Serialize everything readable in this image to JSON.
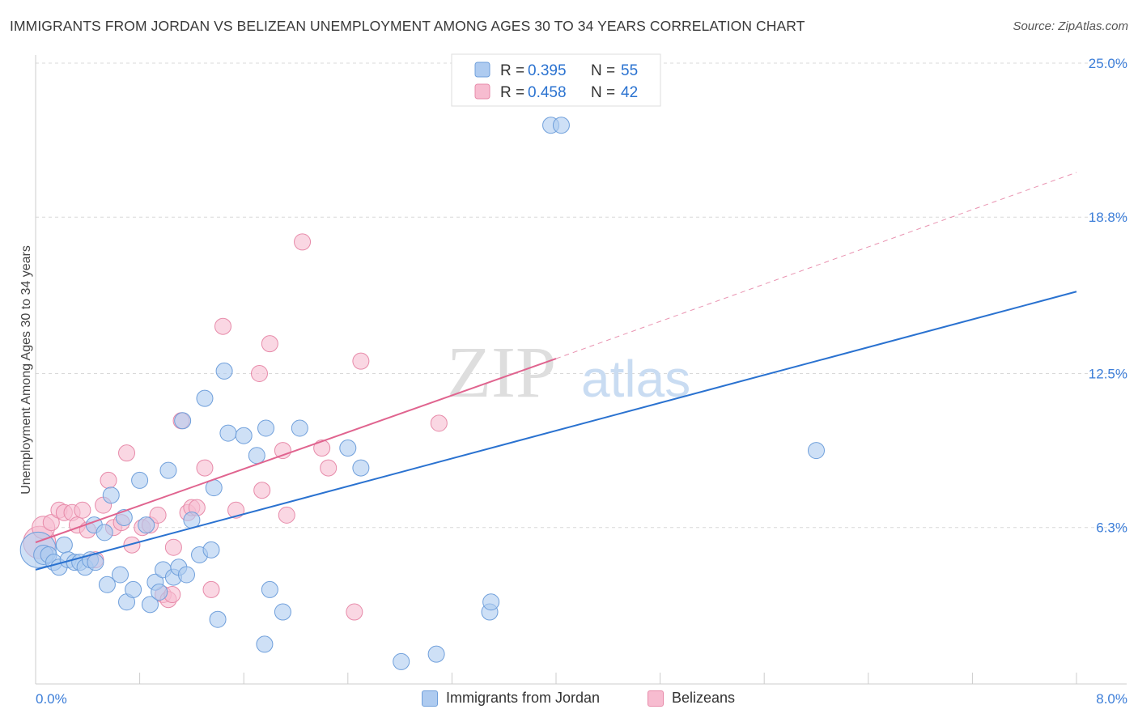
{
  "title": "IMMIGRANTS FROM JORDAN VS BELIZEAN UNEMPLOYMENT AMONG AGES 30 TO 34 YEARS CORRELATION CHART",
  "source": "Source: ZipAtlas.com",
  "watermark": {
    "zip": "ZIP",
    "atlas": "atlas"
  },
  "colors": {
    "blue_fill": "#aecbf0",
    "blue_stroke": "#6f9fdb",
    "blue_line": "#2a72d0",
    "pink_fill": "#f7bcd0",
    "pink_stroke": "#e78aa9",
    "pink_line": "#e0648f",
    "grid": "#d9d9d9",
    "tick_label": "#3b7dd8"
  },
  "chart_data": {
    "type": "scatter",
    "title": "IMMIGRANTS FROM JORDAN VS BELIZEAN UNEMPLOYMENT AMONG AGES 30 TO 34 YEARS CORRELATION CHART",
    "xlabel": "",
    "ylabel": "Unemployment Among Ages 30 to 34 years",
    "xlim": [
      0,
      8.0
    ],
    "ylim": [
      0,
      25.0
    ],
    "x_tick_labels": {
      "min": "0.0%",
      "max": "8.0%"
    },
    "y_ticks": [
      {
        "value": 6.3,
        "label": "6.3%"
      },
      {
        "value": 12.5,
        "label": "12.5%"
      },
      {
        "value": 18.8,
        "label": "18.8%"
      },
      {
        "value": 25.0,
        "label": "25.0%"
      }
    ],
    "legend_stats": [
      {
        "r_label": "R =",
        "r": "0.395",
        "n_label": "N =",
        "n": "55"
      },
      {
        "r_label": "R =",
        "r": "0.458",
        "n_label": "N =",
        "n": "42"
      }
    ],
    "series": [
      {
        "name": "Immigrants from Jordan",
        "color": "blue",
        "trend": {
          "x0": 0.0,
          "y0": 4.6,
          "x1": 8.0,
          "y1": 15.8
        },
        "points": [
          [
            0.02,
            5.4,
            22
          ],
          [
            0.06,
            5.2,
            12
          ],
          [
            0.1,
            5.2,
            10
          ],
          [
            0.14,
            4.9,
            10
          ],
          [
            0.18,
            4.7,
            10
          ],
          [
            0.22,
            5.6,
            10
          ],
          [
            0.25,
            5.0,
            10
          ],
          [
            0.3,
            4.9,
            10
          ],
          [
            0.34,
            4.9,
            10
          ],
          [
            0.38,
            4.7,
            10
          ],
          [
            0.42,
            5.0,
            10
          ],
          [
            0.46,
            4.9,
            10
          ],
          [
            0.45,
            6.4,
            10
          ],
          [
            0.53,
            6.1,
            10
          ],
          [
            0.55,
            4.0,
            10
          ],
          [
            0.58,
            7.6,
            10
          ],
          [
            0.65,
            4.4,
            10
          ],
          [
            0.68,
            6.7,
            10
          ],
          [
            0.7,
            3.3,
            10
          ],
          [
            0.75,
            3.8,
            10
          ],
          [
            0.8,
            8.2,
            10
          ],
          [
            0.85,
            6.4,
            10
          ],
          [
            0.88,
            3.2,
            10
          ],
          [
            0.92,
            4.1,
            10
          ],
          [
            0.95,
            3.7,
            10
          ],
          [
            0.98,
            4.6,
            10
          ],
          [
            1.02,
            8.6,
            10
          ],
          [
            1.06,
            4.3,
            10
          ],
          [
            1.1,
            4.7,
            10
          ],
          [
            1.13,
            10.6,
            10
          ],
          [
            1.16,
            4.4,
            10
          ],
          [
            1.2,
            6.6,
            10
          ],
          [
            1.26,
            5.2,
            10
          ],
          [
            1.3,
            11.5,
            10
          ],
          [
            1.35,
            5.4,
            10
          ],
          [
            1.37,
            7.9,
            10
          ],
          [
            1.4,
            2.6,
            10
          ],
          [
            1.45,
            12.6,
            10
          ],
          [
            1.48,
            10.1,
            10
          ],
          [
            1.6,
            10.0,
            10
          ],
          [
            1.7,
            9.2,
            10
          ],
          [
            1.76,
            1.6,
            10
          ],
          [
            1.8,
            3.8,
            10
          ],
          [
            1.77,
            10.3,
            10
          ],
          [
            1.9,
            2.9,
            10
          ],
          [
            2.03,
            10.3,
            10
          ],
          [
            2.4,
            9.5,
            10
          ],
          [
            2.5,
            8.7,
            10
          ],
          [
            2.81,
            0.9,
            10
          ],
          [
            3.08,
            1.2,
            10
          ],
          [
            3.49,
            2.9,
            10
          ],
          [
            3.5,
            3.3,
            10
          ],
          [
            3.96,
            22.5,
            10
          ],
          [
            4.04,
            22.5,
            10
          ],
          [
            6.0,
            9.4,
            10
          ]
        ]
      },
      {
        "name": "Belizeans",
        "color": "pink",
        "trend": {
          "x0": 0.0,
          "y0": 5.7,
          "x1": 4.0,
          "y1": 13.1,
          "dash_x1": 8.0,
          "dash_y1": 20.6
        },
        "points": [
          [
            0.03,
            5.7,
            20
          ],
          [
            0.06,
            6.3,
            14
          ],
          [
            0.12,
            6.5,
            10
          ],
          [
            0.18,
            7.0,
            10
          ],
          [
            0.22,
            6.9,
            10
          ],
          [
            0.28,
            6.9,
            10
          ],
          [
            0.32,
            6.4,
            10
          ],
          [
            0.36,
            7.0,
            10
          ],
          [
            0.4,
            6.2,
            10
          ],
          [
            0.46,
            5.0,
            10
          ],
          [
            0.52,
            7.2,
            10
          ],
          [
            0.56,
            8.2,
            10
          ],
          [
            0.6,
            6.3,
            10
          ],
          [
            0.66,
            6.5,
            10
          ],
          [
            0.7,
            9.3,
            10
          ],
          [
            0.74,
            5.6,
            10
          ],
          [
            0.82,
            6.3,
            10
          ],
          [
            0.88,
            6.4,
            10
          ],
          [
            0.94,
            6.8,
            10
          ],
          [
            0.98,
            3.6,
            10
          ],
          [
            1.02,
            3.4,
            10
          ],
          [
            1.05,
            3.6,
            10
          ],
          [
            1.06,
            5.5,
            10
          ],
          [
            1.12,
            10.6,
            10
          ],
          [
            1.17,
            6.9,
            10
          ],
          [
            1.2,
            7.1,
            10
          ],
          [
            1.24,
            7.1,
            10
          ],
          [
            1.3,
            8.7,
            10
          ],
          [
            1.35,
            3.8,
            10
          ],
          [
            1.44,
            14.4,
            10
          ],
          [
            1.54,
            7.0,
            10
          ],
          [
            1.72,
            12.5,
            10
          ],
          [
            1.74,
            7.8,
            10
          ],
          [
            1.8,
            13.7,
            10
          ],
          [
            1.9,
            9.4,
            10
          ],
          [
            1.93,
            6.8,
            10
          ],
          [
            2.05,
            17.8,
            10
          ],
          [
            2.2,
            9.5,
            10
          ],
          [
            2.25,
            8.7,
            10
          ],
          [
            2.45,
            2.9,
            10
          ],
          [
            2.5,
            13.0,
            10
          ],
          [
            3.1,
            10.5,
            10
          ]
        ]
      }
    ]
  }
}
